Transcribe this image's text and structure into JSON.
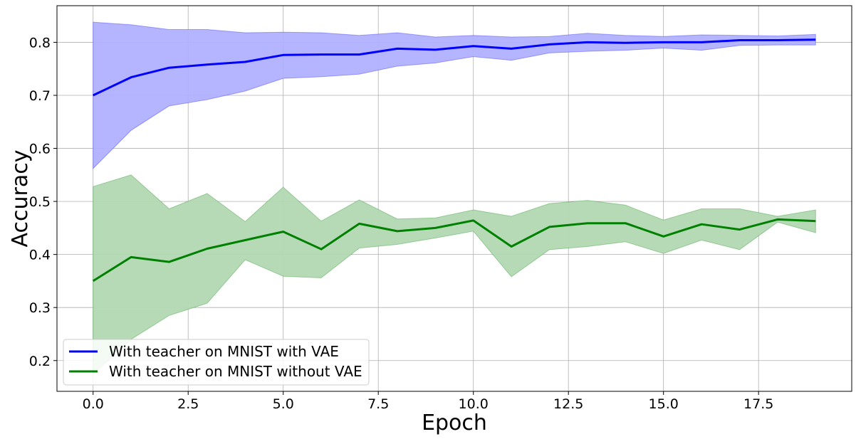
{
  "chart_data": {
    "type": "line",
    "xlabel": "Epoch",
    "ylabel": "Accuracy",
    "xlim": [
      -0.95,
      19.95
    ],
    "ylim": [
      0.142,
      0.869
    ],
    "xticks": [
      0,
      2.5,
      5,
      7.5,
      10,
      12.5,
      15,
      17.5
    ],
    "xtick_labels": [
      "0.0",
      "2.5",
      "5.0",
      "7.5",
      "10.0",
      "12.5",
      "15.0",
      "17.5"
    ],
    "yticks": [
      0.2,
      0.3,
      0.4,
      0.5,
      0.6,
      0.7,
      0.8
    ],
    "ytick_labels": [
      "0.2",
      "0.3",
      "0.4",
      "0.5",
      "0.6",
      "0.7",
      "0.8"
    ],
    "grid": true,
    "legend_position": "lower-left",
    "x": [
      0,
      1,
      2,
      3,
      4,
      5,
      6,
      7,
      8,
      9,
      10,
      11,
      12,
      13,
      14,
      15,
      16,
      17,
      18,
      19
    ],
    "series": [
      {
        "name": "With teacher on MNIST with VAE",
        "color": "#0000ff",
        "band_color": "#b0b0ff",
        "values": [
          0.7,
          0.734,
          0.752,
          0.758,
          0.763,
          0.776,
          0.777,
          0.777,
          0.788,
          0.786,
          0.793,
          0.788,
          0.796,
          0.8,
          0.799,
          0.8,
          0.8,
          0.804,
          0.804,
          0.805
        ],
        "lower": [
          0.562,
          0.634,
          0.68,
          0.692,
          0.708,
          0.732,
          0.735,
          0.74,
          0.755,
          0.761,
          0.773,
          0.766,
          0.78,
          0.783,
          0.785,
          0.789,
          0.785,
          0.794,
          0.795,
          0.795
        ],
        "upper": [
          0.838,
          0.833,
          0.824,
          0.824,
          0.818,
          0.819,
          0.818,
          0.813,
          0.818,
          0.81,
          0.813,
          0.81,
          0.811,
          0.817,
          0.813,
          0.811,
          0.814,
          0.813,
          0.812,
          0.815
        ]
      },
      {
        "name": "With teacher on MNIST without VAE",
        "color": "#008000",
        "band_color": "#b2d8b2",
        "values": [
          0.35,
          0.395,
          0.386,
          0.411,
          0.427,
          0.443,
          0.41,
          0.458,
          0.444,
          0.45,
          0.464,
          0.415,
          0.452,
          0.459,
          0.459,
          0.434,
          0.457,
          0.447,
          0.466,
          0.463
        ],
        "lower": [
          0.175,
          0.24,
          0.285,
          0.308,
          0.39,
          0.359,
          0.356,
          0.412,
          0.419,
          0.431,
          0.444,
          0.358,
          0.409,
          0.415,
          0.424,
          0.402,
          0.427,
          0.409,
          0.461,
          0.441
        ],
        "upper": [
          0.528,
          0.55,
          0.486,
          0.515,
          0.462,
          0.527,
          0.463,
          0.503,
          0.467,
          0.469,
          0.484,
          0.472,
          0.496,
          0.502,
          0.493,
          0.465,
          0.486,
          0.486,
          0.472,
          0.484
        ]
      }
    ]
  }
}
